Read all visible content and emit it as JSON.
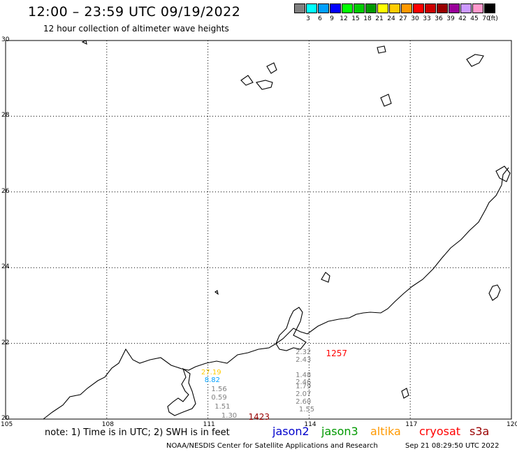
{
  "header": {
    "title": "12:00 – 23:59 UTC 09/19/2022",
    "subtitle": "12 hour collection of altimeter wave heights"
  },
  "legend": {
    "unit": "(ft)",
    "bins": [
      {
        "label": "3",
        "color": "#808080"
      },
      {
        "label": "6",
        "color": "#00ffff"
      },
      {
        "label": "9",
        "color": "#00a0ff"
      },
      {
        "label": "12",
        "color": "#0000ff"
      },
      {
        "label": "15",
        "color": "#00ff00"
      },
      {
        "label": "18",
        "color": "#00cc00"
      },
      {
        "label": "21",
        "color": "#009900"
      },
      {
        "label": "24",
        "color": "#ffff00"
      },
      {
        "label": "27",
        "color": "#ffcc00"
      },
      {
        "label": "30",
        "color": "#ff9900"
      },
      {
        "label": "33",
        "color": "#ff0000"
      },
      {
        "label": "36",
        "color": "#cc0000"
      },
      {
        "label": "39",
        "color": "#990000"
      },
      {
        "label": "42",
        "color": "#990099"
      },
      {
        "label": "45",
        "color": "#cc99ff"
      },
      {
        "label": "70",
        "color": "#ff99cc"
      },
      {
        "label": "",
        "color": "#000000"
      }
    ]
  },
  "map": {
    "lon_range": [
      105,
      120
    ],
    "lat_range": [
      20,
      30
    ],
    "lon_ticks": [
      "105",
      "108",
      "111",
      "114",
      "117",
      "120"
    ],
    "lat_ticks": [
      "30",
      "28",
      "26",
      "24",
      "22",
      "20"
    ]
  },
  "observations": [
    {
      "text": "27.19",
      "color": "#ffcc00",
      "lon": 110.8,
      "lat": 21.2
    },
    {
      "text": "8.82",
      "color": "#00a0ff",
      "lon": 110.9,
      "lat": 21.0
    },
    {
      "text": "1.56",
      "color": "#808080",
      "lon": 111.1,
      "lat": 20.75
    },
    {
      "text": "0.59",
      "color": "#808080",
      "lon": 111.1,
      "lat": 20.53
    },
    {
      "text": "1.51",
      "color": "#808080",
      "lon": 111.2,
      "lat": 20.3
    },
    {
      "text": "1.30",
      "color": "#808080",
      "lon": 111.4,
      "lat": 20.06
    },
    {
      "text": "1423",
      "color": "#990000",
      "lon": 112.2,
      "lat": 20.06
    },
    {
      "text": "2.32",
      "color": "#808080",
      "lon": 113.6,
      "lat": 21.73
    },
    {
      "text": "2.43",
      "color": "#808080",
      "lon": 113.6,
      "lat": 21.53
    },
    {
      "text": "1257",
      "color": "#ff0000",
      "lon": 114.5,
      "lat": 21.73
    },
    {
      "text": "1.48",
      "color": "#808080",
      "lon": 113.6,
      "lat": 21.13
    },
    {
      "text": "2.46",
      "color": "#808080",
      "lon": 113.6,
      "lat": 20.95
    },
    {
      "text": "1.79",
      "color": "#808080",
      "lon": 113.6,
      "lat": 20.83
    },
    {
      "text": "2.07",
      "color": "#808080",
      "lon": 113.6,
      "lat": 20.62
    },
    {
      "text": "2.60",
      "color": "#808080",
      "lon": 113.6,
      "lat": 20.42
    },
    {
      "text": "1.55",
      "color": "#808080",
      "lon": 113.7,
      "lat": 20.22
    }
  ],
  "footer": {
    "note": "note: 1) Time is in UTC; 2) SWH is in feet",
    "satellites": [
      {
        "name": "jason2",
        "color": "#0000cc"
      },
      {
        "name": "jason3",
        "color": "#009900"
      },
      {
        "name": "altika",
        "color": "#ff9900"
      },
      {
        "name": "cryosat",
        "color": "#ff0000"
      },
      {
        "name": "s3a",
        "color": "#990000"
      }
    ],
    "credit": "NOAA/NESDIS Center for Satellite Applications and Research",
    "timestamp": "Sep 21 08:29:50 UTC 2022"
  }
}
